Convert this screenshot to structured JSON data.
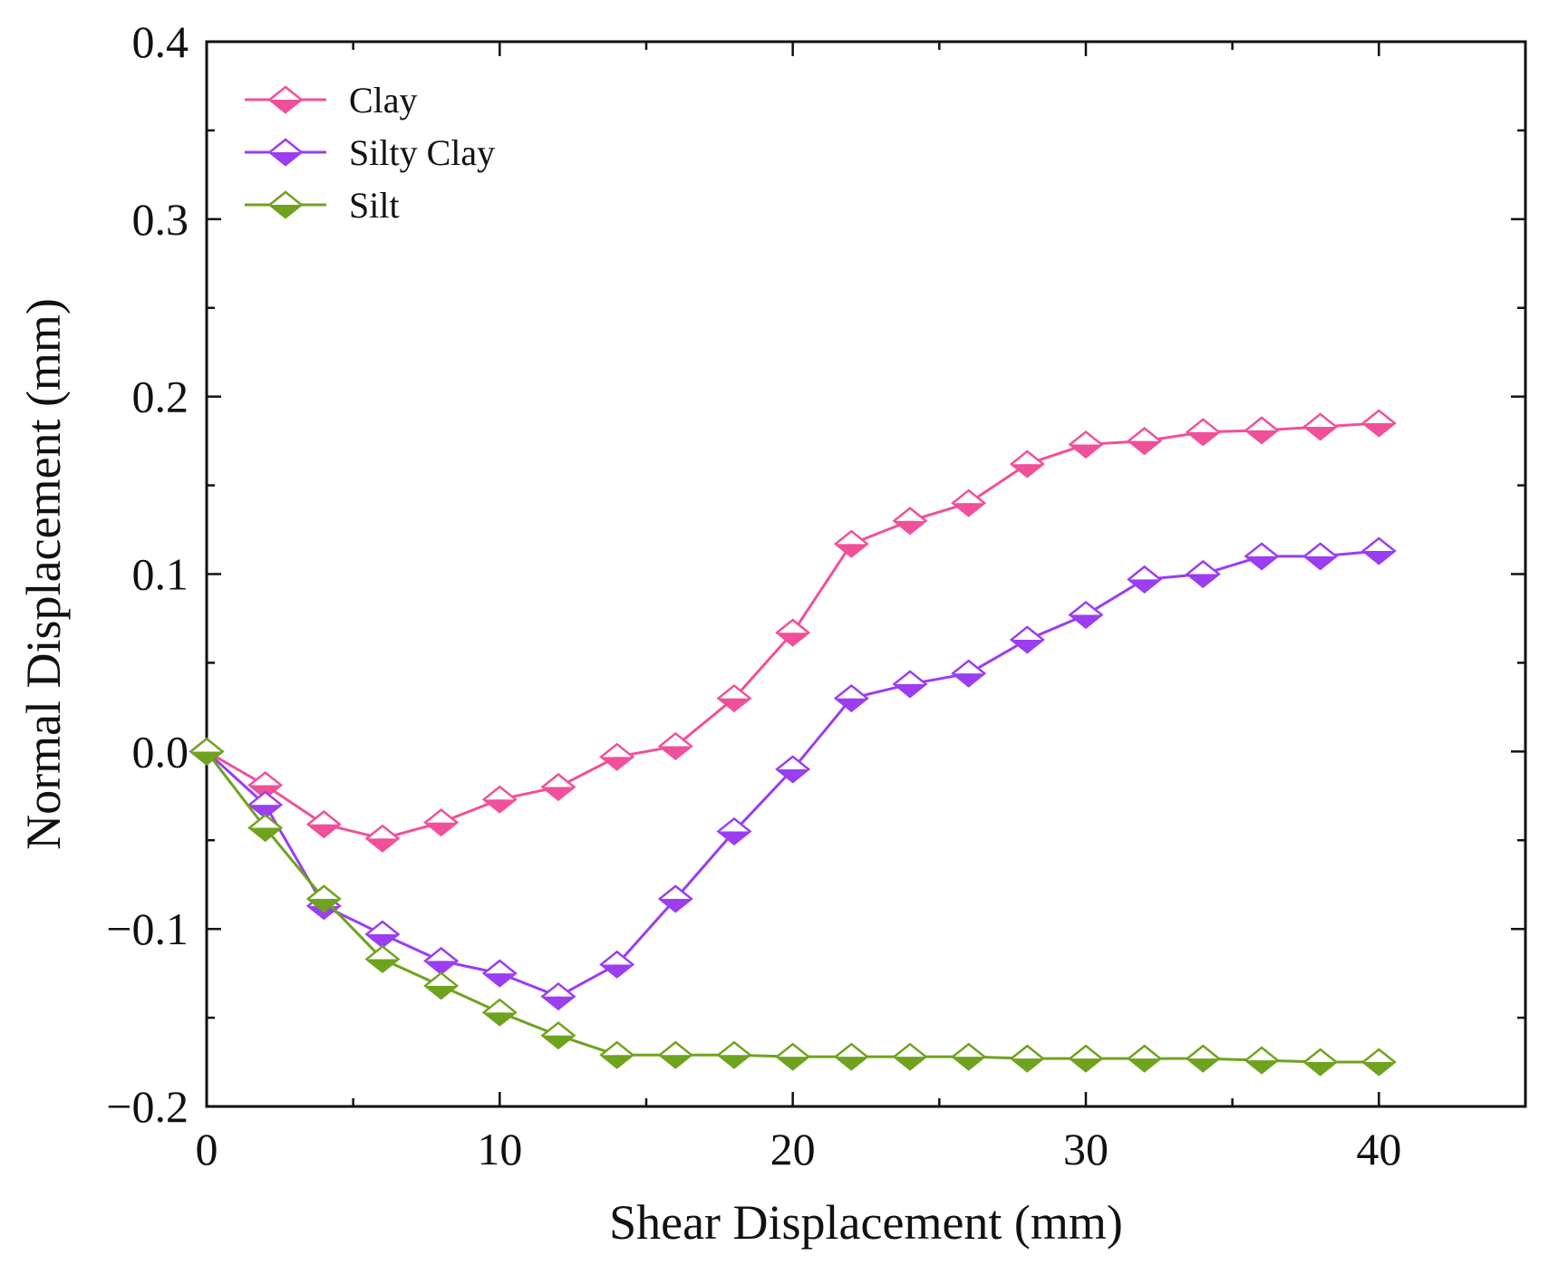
{
  "chart_data": {
    "type": "line",
    "title": "",
    "xlabel": "Shear Displacement (mm)",
    "ylabel": "Normal Displacement (mm)",
    "xlim": [
      0,
      45
    ],
    "ylim": [
      -0.2,
      0.4
    ],
    "xticks": [
      0,
      10,
      20,
      30,
      40
    ],
    "yticks": [
      -0.2,
      -0.1,
      0.0,
      0.1,
      0.2,
      0.3,
      0.4
    ],
    "xtick_labels": [
      "0",
      "10",
      "20",
      "30",
      "40"
    ],
    "ytick_labels": [
      "−0.2",
      "−0.1",
      "0.0",
      "0.1",
      "0.2",
      "0.3",
      "0.4"
    ],
    "grid": false,
    "legend_position": "top-left",
    "x": [
      0,
      2,
      4,
      6,
      8,
      10,
      12,
      14,
      16,
      18,
      20,
      22,
      24,
      26,
      28,
      30,
      32,
      34,
      36,
      38,
      40
    ],
    "series": [
      {
        "name": "Clay",
        "color": "#f0509a",
        "marker": "diamond-half-filled",
        "values": [
          0.0,
          -0.019,
          -0.041,
          -0.049,
          -0.04,
          -0.027,
          -0.02,
          -0.003,
          0.003,
          0.03,
          0.067,
          0.117,
          0.13,
          0.14,
          0.162,
          0.173,
          0.175,
          0.18,
          0.181,
          0.183,
          0.185
        ]
      },
      {
        "name": "Silty Clay",
        "color": "#9b3df0",
        "marker": "diamond-half-filled",
        "values": [
          0.0,
          -0.03,
          -0.087,
          -0.103,
          -0.118,
          -0.125,
          -0.138,
          -0.12,
          -0.083,
          -0.045,
          -0.01,
          0.03,
          0.038,
          0.044,
          0.063,
          0.077,
          0.097,
          0.1,
          0.11,
          0.11,
          0.113
        ]
      },
      {
        "name": "Silt",
        "color": "#6fa31f",
        "marker": "diamond-half-filled",
        "values": [
          0.0,
          -0.043,
          -0.083,
          -0.117,
          -0.132,
          -0.147,
          -0.16,
          -0.171,
          -0.171,
          -0.171,
          -0.172,
          -0.172,
          -0.172,
          -0.172,
          -0.173,
          -0.173,
          -0.173,
          -0.173,
          -0.174,
          -0.175,
          -0.175
        ]
      }
    ]
  }
}
